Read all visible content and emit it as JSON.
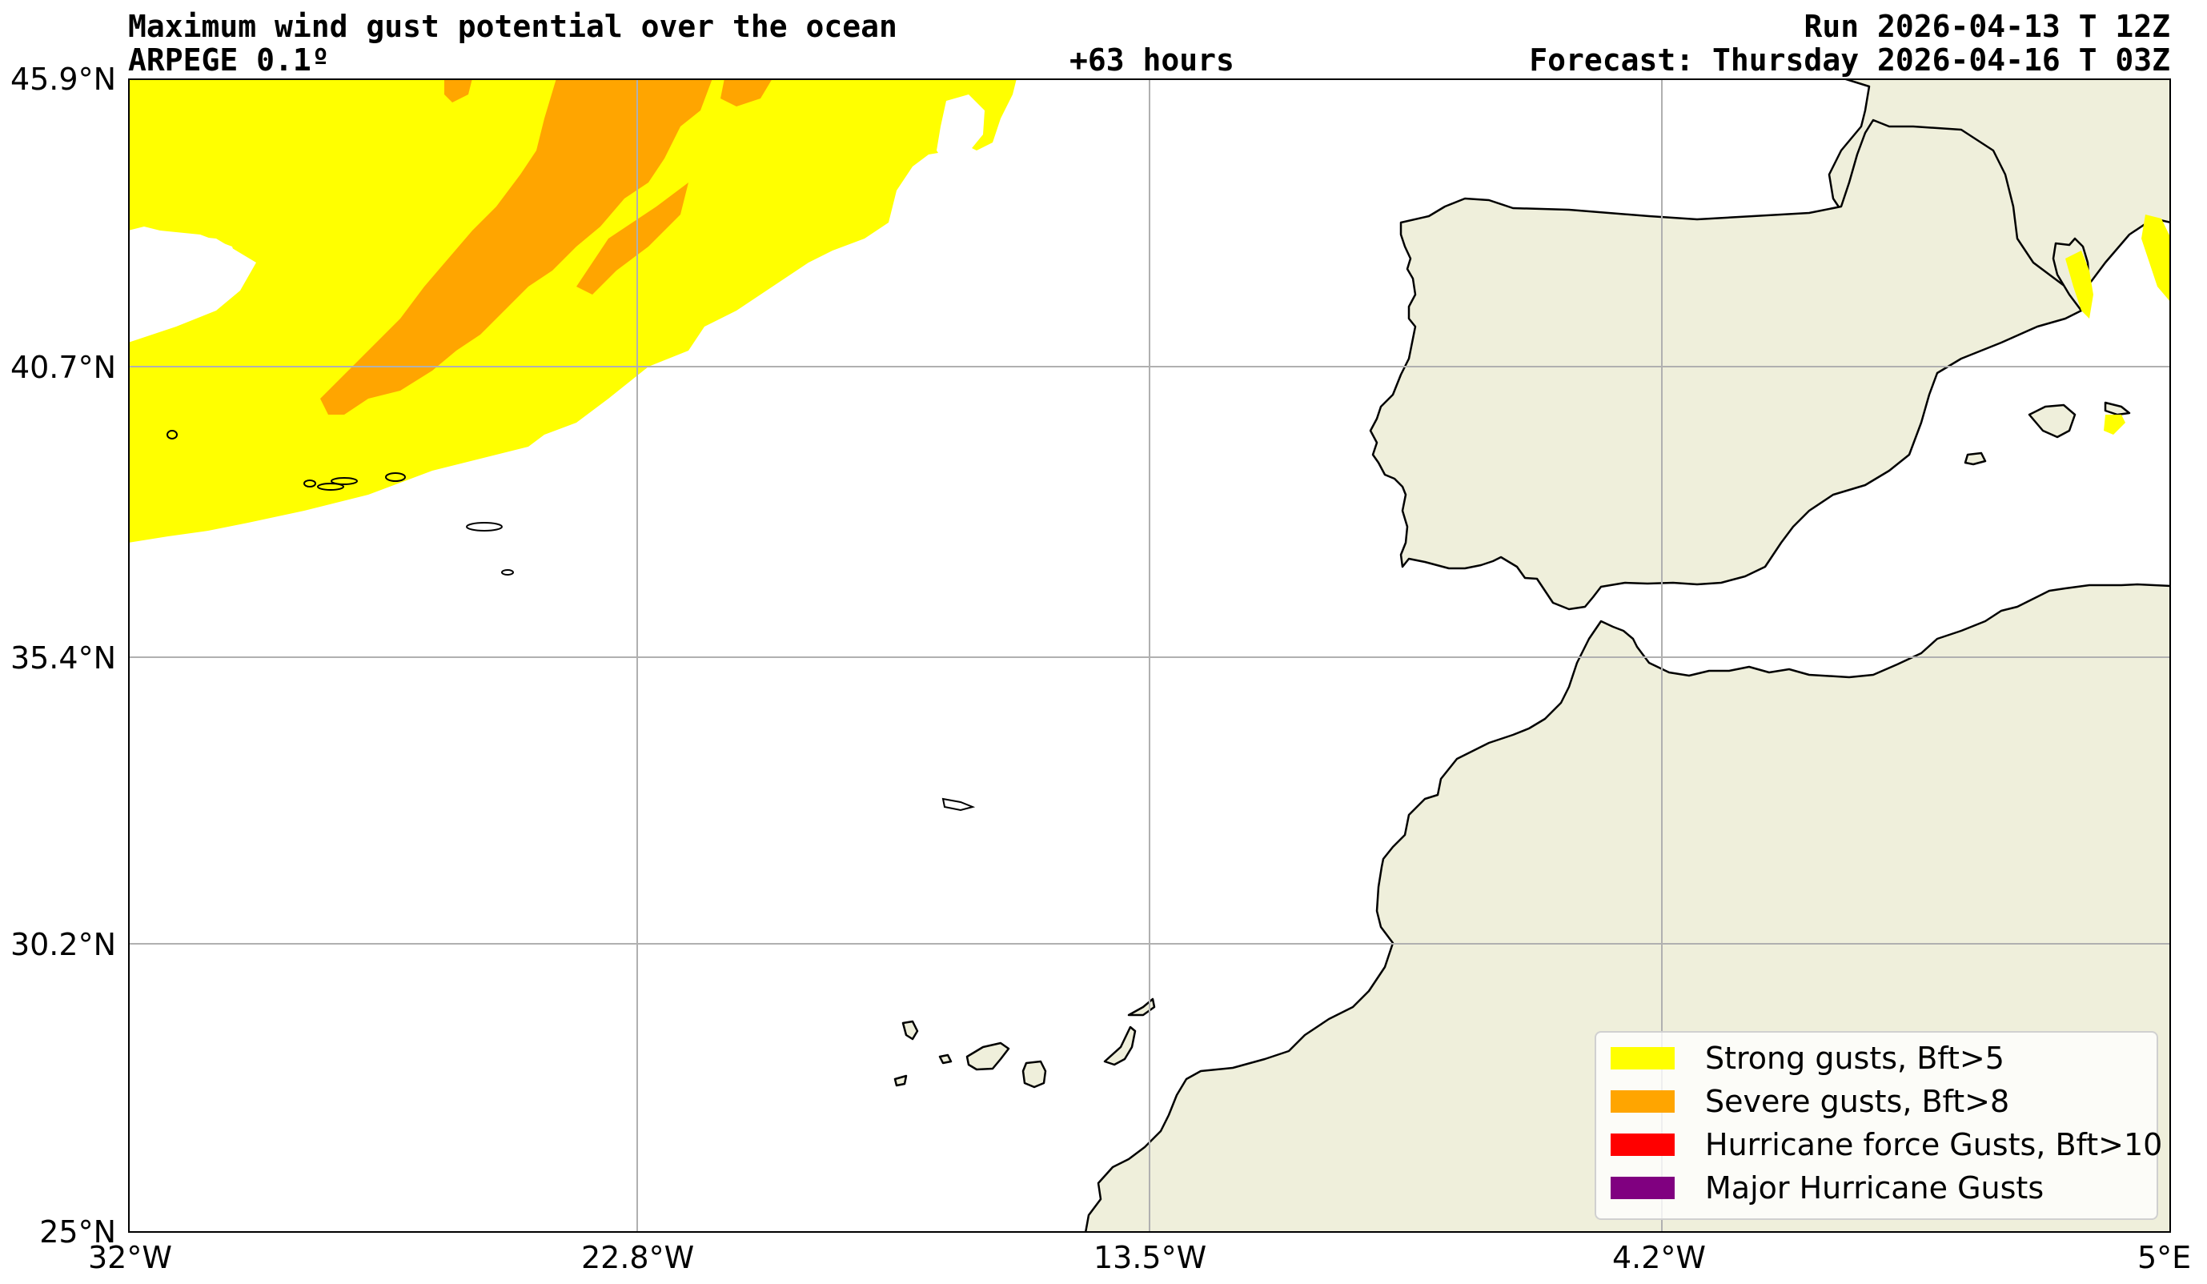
{
  "header": {
    "title": "Maximum wind gust potential over the ocean",
    "model": "ARPEGE 0.1º",
    "lead_time": "+63 hours",
    "run": "Run 2026-04-13 T 12Z",
    "forecast": "Forecast: Thursday 2026-04-16 T 03Z"
  },
  "axes": {
    "lat_ticks": [
      "45.9°N",
      "40.7°N",
      "35.4°N",
      "30.2°N",
      "25°N"
    ],
    "lon_ticks": [
      "32°W",
      "22.8°W",
      "13.5°W",
      "4.2°W",
      "5°E"
    ]
  },
  "legend": {
    "placement": "bottom-right",
    "items": [
      {
        "label": "Strong gusts, Bft>5",
        "color": "#ffff00"
      },
      {
        "label": "Severe gusts, Bft>8",
        "color": "#ffa500"
      },
      {
        "label": "Hurricane force Gusts, Bft>10",
        "color": "#ff0000"
      },
      {
        "label": "Major Hurricane Gusts",
        "color": "#800080"
      }
    ]
  },
  "colors": {
    "land": "#efefdb",
    "coastline": "#000000",
    "grid": "#b0b0b0",
    "ocean": "#ffffff"
  }
}
